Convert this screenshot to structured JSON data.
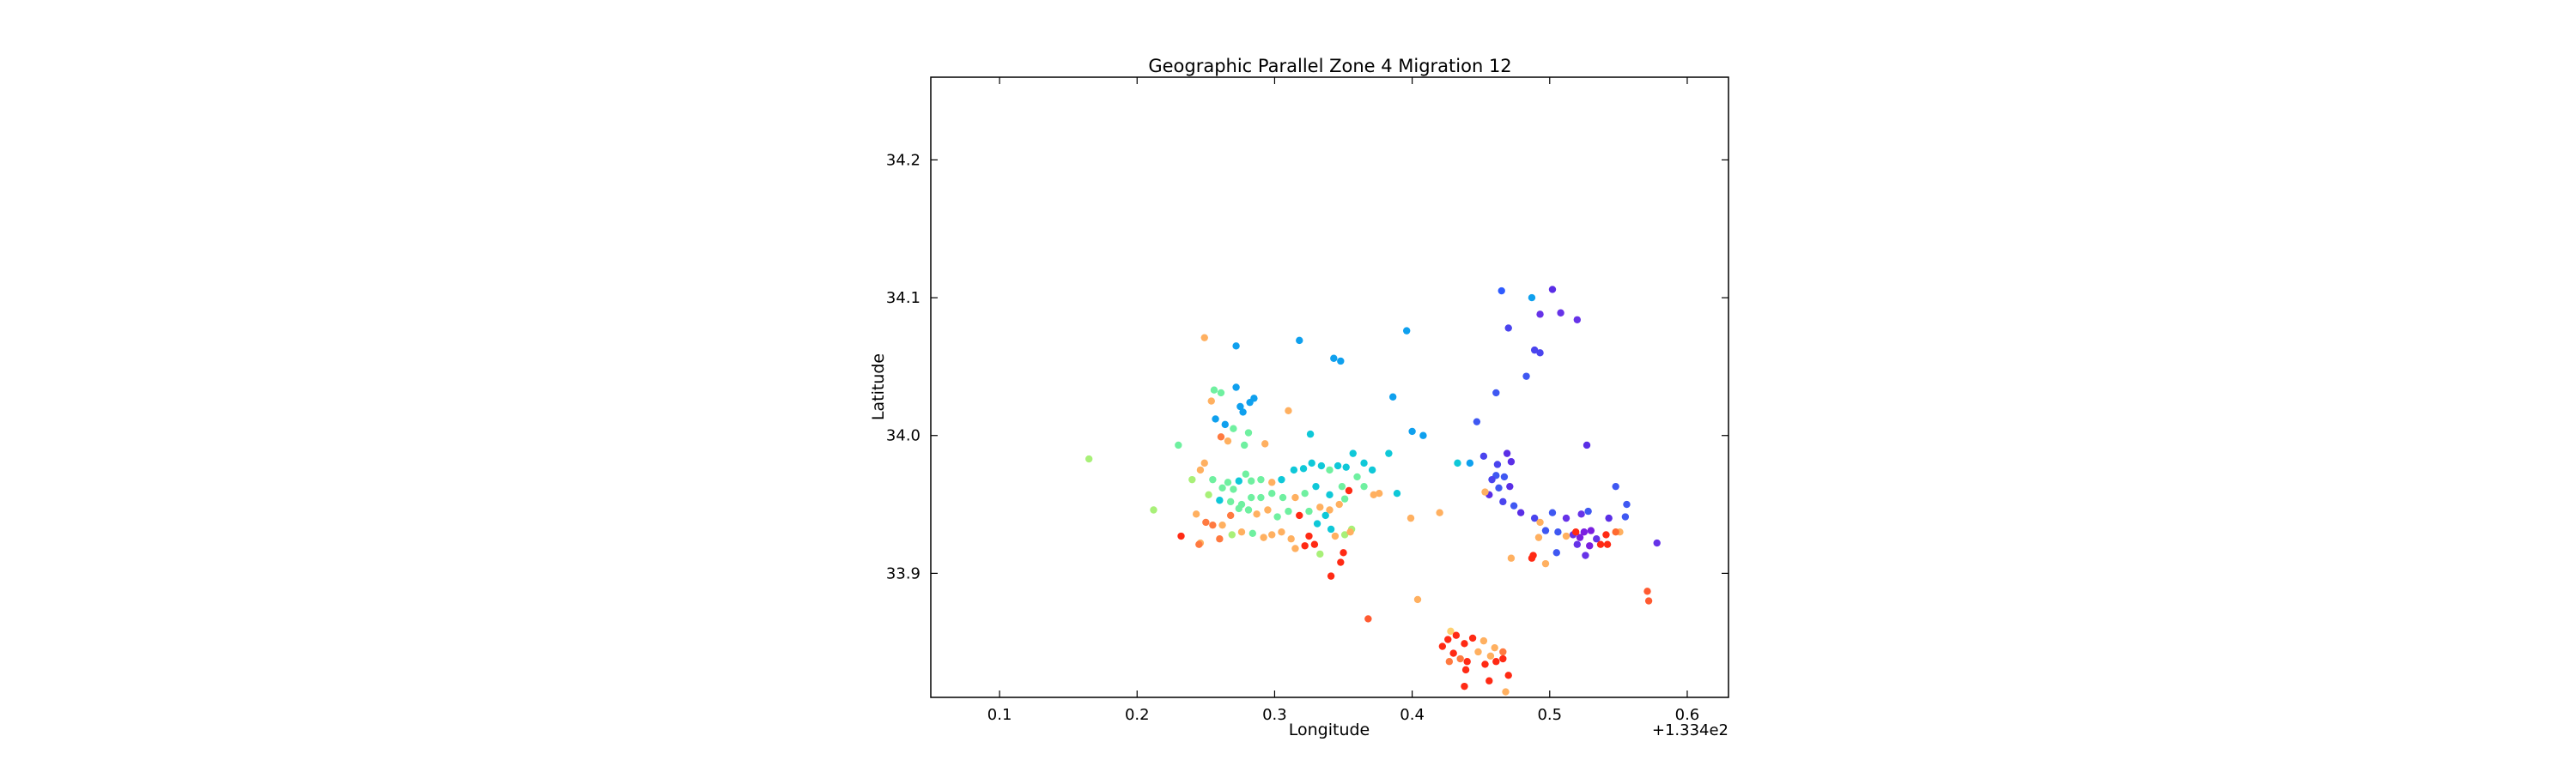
{
  "chart_data": {
    "type": "scatter",
    "title": "Geographic Parallel Zone 4 Migration 12",
    "xlabel": "Longitude",
    "ylabel": "Latitude",
    "x_offset_label": "+1.334e2",
    "xlim": [
      0.05,
      0.63
    ],
    "ylim": [
      33.81,
      34.26
    ],
    "x_ticks": [
      0.1,
      0.2,
      0.3,
      0.4,
      0.5,
      0.6
    ],
    "x_tick_labels": [
      "0.1",
      "0.2",
      "0.3",
      "0.4",
      "0.5",
      "0.6"
    ],
    "y_ticks": [
      33.9,
      34.0,
      34.1,
      34.2
    ],
    "y_tick_labels": [
      "33.9",
      "34.0",
      "34.1",
      "34.2"
    ],
    "grid": false,
    "colormap": "rainbow",
    "points": [
      {
        "x": 0.465,
        "y": 34.105,
        "c": "#2f5bff"
      },
      {
        "x": 0.487,
        "y": 34.1,
        "c": "#0fa0ee"
      },
      {
        "x": 0.502,
        "y": 34.106,
        "c": "#5a2ee6"
      },
      {
        "x": 0.493,
        "y": 34.088,
        "c": "#6633e8"
      },
      {
        "x": 0.508,
        "y": 34.089,
        "c": "#6633e8"
      },
      {
        "x": 0.52,
        "y": 34.084,
        "c": "#6633e8"
      },
      {
        "x": 0.47,
        "y": 34.078,
        "c": "#4a44ee"
      },
      {
        "x": 0.489,
        "y": 34.062,
        "c": "#4a44ee"
      },
      {
        "x": 0.493,
        "y": 34.06,
        "c": "#4a44ee"
      },
      {
        "x": 0.483,
        "y": 34.043,
        "c": "#3f58f2"
      },
      {
        "x": 0.461,
        "y": 34.031,
        "c": "#3f58f2"
      },
      {
        "x": 0.447,
        "y": 34.01,
        "c": "#3f58f2"
      },
      {
        "x": 0.527,
        "y": 33.993,
        "c": "#5a2ee6"
      },
      {
        "x": 0.452,
        "y": 33.985,
        "c": "#4a44ee"
      },
      {
        "x": 0.469,
        "y": 33.987,
        "c": "#5a2ee6"
      },
      {
        "x": 0.472,
        "y": 33.981,
        "c": "#5a2ee6"
      },
      {
        "x": 0.462,
        "y": 33.979,
        "c": "#4a44ee"
      },
      {
        "x": 0.461,
        "y": 33.971,
        "c": "#3f58f2"
      },
      {
        "x": 0.467,
        "y": 33.97,
        "c": "#3f58f2"
      },
      {
        "x": 0.458,
        "y": 33.968,
        "c": "#4a44ee"
      },
      {
        "x": 0.471,
        "y": 33.963,
        "c": "#5a2ee6"
      },
      {
        "x": 0.463,
        "y": 33.962,
        "c": "#3f58f2"
      },
      {
        "x": 0.456,
        "y": 33.957,
        "c": "#5a2ee6"
      },
      {
        "x": 0.466,
        "y": 33.952,
        "c": "#4a44ee"
      },
      {
        "x": 0.474,
        "y": 33.949,
        "c": "#3f58f2"
      },
      {
        "x": 0.479,
        "y": 33.944,
        "c": "#5a2ee6"
      },
      {
        "x": 0.489,
        "y": 33.94,
        "c": "#4a44ee"
      },
      {
        "x": 0.548,
        "y": 33.963,
        "c": "#3f58f2"
      },
      {
        "x": 0.556,
        "y": 33.95,
        "c": "#3f58f2"
      },
      {
        "x": 0.555,
        "y": 33.941,
        "c": "#3f58f2"
      },
      {
        "x": 0.502,
        "y": 33.944,
        "c": "#3f58f2"
      },
      {
        "x": 0.512,
        "y": 33.94,
        "c": "#6633e8"
      },
      {
        "x": 0.523,
        "y": 33.943,
        "c": "#6633e8"
      },
      {
        "x": 0.528,
        "y": 33.945,
        "c": "#3f58f2"
      },
      {
        "x": 0.543,
        "y": 33.94,
        "c": "#5a2ee6"
      },
      {
        "x": 0.497,
        "y": 33.931,
        "c": "#3f58f2"
      },
      {
        "x": 0.506,
        "y": 33.93,
        "c": "#3f58f2"
      },
      {
        "x": 0.517,
        "y": 33.928,
        "c": "#6633e8"
      },
      {
        "x": 0.522,
        "y": 33.926,
        "c": "#7a1fe0"
      },
      {
        "x": 0.525,
        "y": 33.93,
        "c": "#7a1fe0"
      },
      {
        "x": 0.53,
        "y": 33.931,
        "c": "#7a1fe0"
      },
      {
        "x": 0.534,
        "y": 33.925,
        "c": "#6633e8"
      },
      {
        "x": 0.529,
        "y": 33.92,
        "c": "#7a1fe0"
      },
      {
        "x": 0.52,
        "y": 33.921,
        "c": "#6633e8"
      },
      {
        "x": 0.526,
        "y": 33.913,
        "c": "#6633e8"
      },
      {
        "x": 0.505,
        "y": 33.915,
        "c": "#3f58f2"
      },
      {
        "x": 0.578,
        "y": 33.922,
        "c": "#6633e8"
      },
      {
        "x": 0.541,
        "y": 33.928,
        "c": "#ff2a14"
      },
      {
        "x": 0.537,
        "y": 33.921,
        "c": "#ff2a14"
      },
      {
        "x": 0.542,
        "y": 33.921,
        "c": "#ff2a14"
      },
      {
        "x": 0.519,
        "y": 33.93,
        "c": "#ff2a14"
      },
      {
        "x": 0.487,
        "y": 33.911,
        "c": "#ff2a14"
      },
      {
        "x": 0.488,
        "y": 33.913,
        "c": "#ff2a14"
      },
      {
        "x": 0.493,
        "y": 33.937,
        "c": "#ffb060"
      },
      {
        "x": 0.492,
        "y": 33.926,
        "c": "#ffb060"
      },
      {
        "x": 0.512,
        "y": 33.927,
        "c": "#ffb060"
      },
      {
        "x": 0.472,
        "y": 33.911,
        "c": "#ffb060"
      },
      {
        "x": 0.497,
        "y": 33.907,
        "c": "#ffb060"
      },
      {
        "x": 0.551,
        "y": 33.93,
        "c": "#ffb060"
      },
      {
        "x": 0.548,
        "y": 33.93,
        "c": "#ff6a30"
      },
      {
        "x": 0.571,
        "y": 33.887,
        "c": "#ff5a30"
      },
      {
        "x": 0.572,
        "y": 33.88,
        "c": "#ff5a30"
      },
      {
        "x": 0.453,
        "y": 33.959,
        "c": "#ffb060"
      },
      {
        "x": 0.433,
        "y": 33.98,
        "c": "#0fc8d8"
      },
      {
        "x": 0.442,
        "y": 33.98,
        "c": "#0fa0ee"
      },
      {
        "x": 0.42,
        "y": 33.944,
        "c": "#ffb060"
      },
      {
        "x": 0.408,
        "y": 34.0,
        "c": "#0fa0ee"
      },
      {
        "x": 0.4,
        "y": 34.003,
        "c": "#0fa0ee"
      },
      {
        "x": 0.396,
        "y": 34.076,
        "c": "#0fa0ee"
      },
      {
        "x": 0.386,
        "y": 34.028,
        "c": "#0fa0ee"
      },
      {
        "x": 0.389,
        "y": 33.958,
        "c": "#0fc8d8"
      },
      {
        "x": 0.383,
        "y": 33.987,
        "c": "#0fc8d8"
      },
      {
        "x": 0.376,
        "y": 33.958,
        "c": "#ffb060"
      },
      {
        "x": 0.368,
        "y": 33.867,
        "c": "#ff5a30"
      },
      {
        "x": 0.399,
        "y": 33.94,
        "c": "#ffb060"
      },
      {
        "x": 0.404,
        "y": 33.881,
        "c": "#ffb060"
      },
      {
        "x": 0.348,
        "y": 34.054,
        "c": "#0fa0ee"
      },
      {
        "x": 0.343,
        "y": 34.056,
        "c": "#0fa0ee"
      },
      {
        "x": 0.318,
        "y": 34.069,
        "c": "#0fa0ee"
      },
      {
        "x": 0.272,
        "y": 34.065,
        "c": "#0fa0ee"
      },
      {
        "x": 0.249,
        "y": 34.071,
        "c": "#ffb060"
      },
      {
        "x": 0.282,
        "y": 34.024,
        "c": "#0fa0ee"
      },
      {
        "x": 0.275,
        "y": 34.021,
        "c": "#0fa0ee"
      },
      {
        "x": 0.277,
        "y": 34.017,
        "c": "#0fa0ee"
      },
      {
        "x": 0.272,
        "y": 34.035,
        "c": "#0fa0ee"
      },
      {
        "x": 0.256,
        "y": 34.033,
        "c": "#6ff0a0"
      },
      {
        "x": 0.261,
        "y": 34.031,
        "c": "#6ff0a0"
      },
      {
        "x": 0.254,
        "y": 34.025,
        "c": "#ffb060"
      },
      {
        "x": 0.257,
        "y": 34.012,
        "c": "#0fa0ee"
      },
      {
        "x": 0.264,
        "y": 34.008,
        "c": "#0fa0ee"
      },
      {
        "x": 0.27,
        "y": 34.005,
        "c": "#6ff0a0"
      },
      {
        "x": 0.266,
        "y": 33.996,
        "c": "#ffb060"
      },
      {
        "x": 0.261,
        "y": 33.999,
        "c": "#ff7a40"
      },
      {
        "x": 0.281,
        "y": 34.002,
        "c": "#6ff0a0"
      },
      {
        "x": 0.285,
        "y": 34.027,
        "c": "#0fa0ee"
      },
      {
        "x": 0.31,
        "y": 34.018,
        "c": "#ffb060"
      },
      {
        "x": 0.278,
        "y": 33.993,
        "c": "#6ff0a0"
      },
      {
        "x": 0.293,
        "y": 33.994,
        "c": "#ffb060"
      },
      {
        "x": 0.326,
        "y": 34.001,
        "c": "#0fc8d8"
      },
      {
        "x": 0.23,
        "y": 33.993,
        "c": "#6ff0a0"
      },
      {
        "x": 0.165,
        "y": 33.983,
        "c": "#a8f078"
      },
      {
        "x": 0.249,
        "y": 33.98,
        "c": "#ffb060"
      },
      {
        "x": 0.246,
        "y": 33.975,
        "c": "#ffb060"
      },
      {
        "x": 0.24,
        "y": 33.968,
        "c": "#a8f078"
      },
      {
        "x": 0.255,
        "y": 33.968,
        "c": "#6ff0a0"
      },
      {
        "x": 0.262,
        "y": 33.962,
        "c": "#6ff0a0"
      },
      {
        "x": 0.266,
        "y": 33.966,
        "c": "#6ff0a0"
      },
      {
        "x": 0.27,
        "y": 33.961,
        "c": "#6ff0a0"
      },
      {
        "x": 0.274,
        "y": 33.967,
        "c": "#0fc8d8"
      },
      {
        "x": 0.279,
        "y": 33.972,
        "c": "#6ff0a0"
      },
      {
        "x": 0.283,
        "y": 33.967,
        "c": "#6ff0a0"
      },
      {
        "x": 0.29,
        "y": 33.968,
        "c": "#6ff0a0"
      },
      {
        "x": 0.298,
        "y": 33.966,
        "c": "#ffb060"
      },
      {
        "x": 0.305,
        "y": 33.968,
        "c": "#0fc8d8"
      },
      {
        "x": 0.314,
        "y": 33.975,
        "c": "#0fc8d8"
      },
      {
        "x": 0.321,
        "y": 33.976,
        "c": "#0fc8d8"
      },
      {
        "x": 0.327,
        "y": 33.98,
        "c": "#0fc8d8"
      },
      {
        "x": 0.334,
        "y": 33.978,
        "c": "#0fc8d8"
      },
      {
        "x": 0.34,
        "y": 33.975,
        "c": "#6ff0a0"
      },
      {
        "x": 0.346,
        "y": 33.978,
        "c": "#0fc8d8"
      },
      {
        "x": 0.352,
        "y": 33.977,
        "c": "#0fc8d8"
      },
      {
        "x": 0.357,
        "y": 33.987,
        "c": "#0fc8d8"
      },
      {
        "x": 0.365,
        "y": 33.98,
        "c": "#0fc8d8"
      },
      {
        "x": 0.371,
        "y": 33.975,
        "c": "#0fc8d8"
      },
      {
        "x": 0.36,
        "y": 33.97,
        "c": "#6ff0a0"
      },
      {
        "x": 0.365,
        "y": 33.963,
        "c": "#6ff0a0"
      },
      {
        "x": 0.372,
        "y": 33.957,
        "c": "#ffb060"
      },
      {
        "x": 0.354,
        "y": 33.96,
        "c": "#ff2a14"
      },
      {
        "x": 0.349,
        "y": 33.963,
        "c": "#6ff0a0"
      },
      {
        "x": 0.34,
        "y": 33.957,
        "c": "#0fc8d8"
      },
      {
        "x": 0.33,
        "y": 33.963,
        "c": "#0fc8d8"
      },
      {
        "x": 0.322,
        "y": 33.958,
        "c": "#6ff0a0"
      },
      {
        "x": 0.315,
        "y": 33.955,
        "c": "#ffb060"
      },
      {
        "x": 0.306,
        "y": 33.955,
        "c": "#6ff0a0"
      },
      {
        "x": 0.298,
        "y": 33.958,
        "c": "#6ff0a0"
      },
      {
        "x": 0.29,
        "y": 33.955,
        "c": "#6ff0a0"
      },
      {
        "x": 0.283,
        "y": 33.955,
        "c": "#6ff0a0"
      },
      {
        "x": 0.276,
        "y": 33.95,
        "c": "#6ff0a0"
      },
      {
        "x": 0.268,
        "y": 33.952,
        "c": "#6ff0a0"
      },
      {
        "x": 0.26,
        "y": 33.953,
        "c": "#0fc8d8"
      },
      {
        "x": 0.252,
        "y": 33.957,
        "c": "#a8f078"
      },
      {
        "x": 0.212,
        "y": 33.946,
        "c": "#a8f078"
      },
      {
        "x": 0.243,
        "y": 33.943,
        "c": "#ffb060"
      },
      {
        "x": 0.25,
        "y": 33.937,
        "c": "#ff7a40"
      },
      {
        "x": 0.255,
        "y": 33.935,
        "c": "#ff7a40"
      },
      {
        "x": 0.262,
        "y": 33.935,
        "c": "#ffb060"
      },
      {
        "x": 0.268,
        "y": 33.942,
        "c": "#ff7a40"
      },
      {
        "x": 0.274,
        "y": 33.947,
        "c": "#6ff0a0"
      },
      {
        "x": 0.281,
        "y": 33.946,
        "c": "#6ff0a0"
      },
      {
        "x": 0.287,
        "y": 33.943,
        "c": "#ffb060"
      },
      {
        "x": 0.295,
        "y": 33.946,
        "c": "#ffb060"
      },
      {
        "x": 0.302,
        "y": 33.941,
        "c": "#6ff0a0"
      },
      {
        "x": 0.31,
        "y": 33.945,
        "c": "#6ff0a0"
      },
      {
        "x": 0.318,
        "y": 33.942,
        "c": "#ff2a14"
      },
      {
        "x": 0.325,
        "y": 33.945,
        "c": "#6ff0a0"
      },
      {
        "x": 0.333,
        "y": 33.948,
        "c": "#ffb060"
      },
      {
        "x": 0.34,
        "y": 33.946,
        "c": "#ffb060"
      },
      {
        "x": 0.347,
        "y": 33.95,
        "c": "#ffb060"
      },
      {
        "x": 0.351,
        "y": 33.954,
        "c": "#6ff0a0"
      },
      {
        "x": 0.337,
        "y": 33.942,
        "c": "#0fc8d8"
      },
      {
        "x": 0.331,
        "y": 33.936,
        "c": "#0fc8d8"
      },
      {
        "x": 0.341,
        "y": 33.932,
        "c": "#0fc8d8"
      },
      {
        "x": 0.351,
        "y": 33.928,
        "c": "#a8f078"
      },
      {
        "x": 0.356,
        "y": 33.932,
        "c": "#a8f078"
      },
      {
        "x": 0.344,
        "y": 33.927,
        "c": "#ffb060"
      },
      {
        "x": 0.325,
        "y": 33.927,
        "c": "#ff2a14"
      },
      {
        "x": 0.329,
        "y": 33.921,
        "c": "#ff2a14"
      },
      {
        "x": 0.322,
        "y": 33.92,
        "c": "#ff2a14"
      },
      {
        "x": 0.315,
        "y": 33.918,
        "c": "#ffb060"
      },
      {
        "x": 0.312,
        "y": 33.925,
        "c": "#ffb060"
      },
      {
        "x": 0.305,
        "y": 33.93,
        "c": "#ffb060"
      },
      {
        "x": 0.298,
        "y": 33.928,
        "c": "#ffb060"
      },
      {
        "x": 0.292,
        "y": 33.926,
        "c": "#ffb060"
      },
      {
        "x": 0.284,
        "y": 33.929,
        "c": "#6ff0a0"
      },
      {
        "x": 0.276,
        "y": 33.93,
        "c": "#ffb060"
      },
      {
        "x": 0.269,
        "y": 33.928,
        "c": "#a8f078"
      },
      {
        "x": 0.26,
        "y": 33.925,
        "c": "#ff7a40"
      },
      {
        "x": 0.246,
        "y": 33.922,
        "c": "#ffb060"
      },
      {
        "x": 0.232,
        "y": 33.927,
        "c": "#ff2a14"
      },
      {
        "x": 0.245,
        "y": 33.921,
        "c": "#ff7a40"
      },
      {
        "x": 0.333,
        "y": 33.914,
        "c": "#a8f078"
      },
      {
        "x": 0.35,
        "y": 33.915,
        "c": "#ff2a14"
      },
      {
        "x": 0.348,
        "y": 33.908,
        "c": "#ff2a14"
      },
      {
        "x": 0.341,
        "y": 33.898,
        "c": "#ff2a14"
      },
      {
        "x": 0.355,
        "y": 33.93,
        "c": "#ffb060"
      },
      {
        "x": 0.428,
        "y": 33.858,
        "c": "#ffd070"
      },
      {
        "x": 0.426,
        "y": 33.852,
        "c": "#ff2a14"
      },
      {
        "x": 0.432,
        "y": 33.855,
        "c": "#ff2a14"
      },
      {
        "x": 0.438,
        "y": 33.849,
        "c": "#ff2a14"
      },
      {
        "x": 0.444,
        "y": 33.853,
        "c": "#ff2a14"
      },
      {
        "x": 0.422,
        "y": 33.847,
        "c": "#ff2a14"
      },
      {
        "x": 0.452,
        "y": 33.851,
        "c": "#ffb060"
      },
      {
        "x": 0.46,
        "y": 33.846,
        "c": "#ffb060"
      },
      {
        "x": 0.466,
        "y": 33.843,
        "c": "#ff7a40"
      },
      {
        "x": 0.457,
        "y": 33.84,
        "c": "#ffb060"
      },
      {
        "x": 0.448,
        "y": 33.843,
        "c": "#ffb060"
      },
      {
        "x": 0.43,
        "y": 33.842,
        "c": "#ff2a14"
      },
      {
        "x": 0.435,
        "y": 33.838,
        "c": "#ff7a40"
      },
      {
        "x": 0.44,
        "y": 33.836,
        "c": "#ff2a14"
      },
      {
        "x": 0.427,
        "y": 33.836,
        "c": "#ff7a40"
      },
      {
        "x": 0.453,
        "y": 33.834,
        "c": "#ff2a14"
      },
      {
        "x": 0.461,
        "y": 33.836,
        "c": "#ff2a14"
      },
      {
        "x": 0.466,
        "y": 33.838,
        "c": "#ff2a14"
      },
      {
        "x": 0.439,
        "y": 33.83,
        "c": "#ff2a14"
      },
      {
        "x": 0.47,
        "y": 33.826,
        "c": "#ff2a14"
      },
      {
        "x": 0.456,
        "y": 33.822,
        "c": "#ff2a14"
      },
      {
        "x": 0.438,
        "y": 33.818,
        "c": "#ff2a14"
      },
      {
        "x": 0.468,
        "y": 33.814,
        "c": "#ffb060"
      }
    ]
  }
}
